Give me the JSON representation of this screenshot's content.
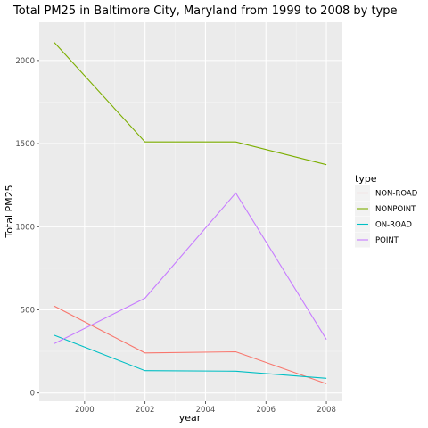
{
  "chart_data": {
    "type": "line",
    "title": "Total PM25 in Baltimore City, Maryland from 1999 to 2008 by type",
    "xlabel": "year",
    "ylabel": "Total PM25",
    "x": [
      1999,
      2002,
      2005,
      2008
    ],
    "xlim": [
      1998.5,
      2008.5
    ],
    "ylim": [
      -50,
      2230
    ],
    "xticks": [
      2000,
      2002,
      2004,
      2006,
      2008
    ],
    "yticks": [
      0,
      500,
      1000,
      1500,
      2000
    ],
    "grid": true,
    "legend": {
      "title": "type",
      "placement": "right"
    },
    "series": [
      {
        "name": "NON-ROAD",
        "color": "#F8766D",
        "values": [
          522,
          241,
          248,
          55
        ]
      },
      {
        "name": "NONPOINT",
        "color": "#7CAE00",
        "values": [
          2108,
          1510,
          1510,
          1373
        ]
      },
      {
        "name": "ON-ROAD",
        "color": "#00BFC4",
        "values": [
          347,
          134,
          131,
          88
        ]
      },
      {
        "name": "POINT",
        "color": "#C77CFF",
        "values": [
          297,
          570,
          1203,
          322
        ]
      }
    ]
  }
}
